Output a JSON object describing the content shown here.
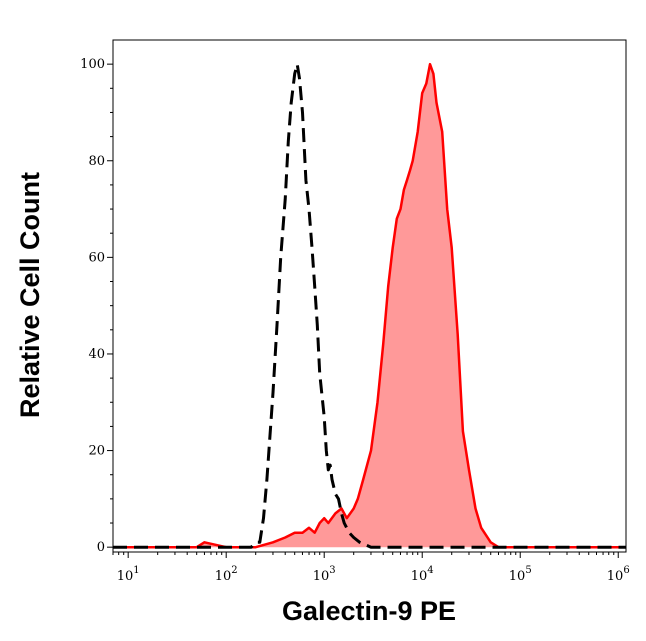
{
  "chart_data": {
    "type": "area",
    "xlabel": "Galectin-9 PE",
    "ylabel": "Relative Cell Count",
    "x_scale": "log",
    "xlim": [
      7,
      1200000
    ],
    "ylim": [
      -1,
      105
    ],
    "x_ticks": [
      {
        "value": 10,
        "base": "10",
        "exp": "1"
      },
      {
        "value": 100,
        "base": "10",
        "exp": "2"
      },
      {
        "value": 1000,
        "base": "10",
        "exp": "3"
      },
      {
        "value": 10000,
        "base": "10",
        "exp": "4"
      },
      {
        "value": 100000,
        "base": "10",
        "exp": "5"
      },
      {
        "value": 1000000,
        "base": "10",
        "exp": "6"
      }
    ],
    "y_ticks": [
      0,
      20,
      40,
      60,
      80,
      100
    ],
    "grid": false,
    "series": [
      {
        "style": "dashed-outline",
        "color": "#000000",
        "x": [
          7,
          100,
          150,
          180,
          200,
          220,
          240,
          260,
          300,
          330,
          360,
          400,
          430,
          460,
          500,
          530,
          560,
          600,
          650,
          700,
          750,
          800,
          850,
          900,
          1000,
          1050,
          1100,
          1150,
          1200,
          1300,
          1400,
          1500,
          1600,
          1800,
          2000,
          2300,
          3000,
          5000,
          10000,
          1200000
        ],
        "y": [
          0,
          0,
          0,
          0,
          1,
          1,
          6,
          14,
          32,
          46,
          60,
          72,
          84,
          92,
          98,
          100,
          97,
          90,
          76,
          70,
          62,
          54,
          46,
          36,
          27,
          20,
          16,
          17,
          14,
          11,
          10,
          7,
          5,
          3,
          2,
          1,
          0,
          0,
          0,
          0
        ]
      },
      {
        "style": "filled",
        "color": "#ff0000",
        "fill": "#ff9999",
        "x": [
          7,
          50,
          60,
          100,
          200,
          300,
          400,
          500,
          600,
          700,
          800,
          900,
          1000,
          1100,
          1300,
          1500,
          1700,
          2000,
          2200,
          2500,
          3000,
          3500,
          4000,
          4500,
          5000,
          5500,
          6000,
          6500,
          7000,
          7500,
          8000,
          9000,
          10000,
          11000,
          12000,
          13000,
          14000,
          16000,
          18000,
          20000,
          23000,
          26000,
          30000,
          35000,
          40000,
          50000,
          60000,
          100000,
          1200000
        ],
        "y": [
          0,
          0,
          1,
          0,
          0,
          1,
          2,
          3,
          3,
          4,
          3,
          5,
          6,
          5,
          7,
          8,
          6,
          8,
          10,
          14,
          20,
          30,
          42,
          54,
          62,
          68,
          70,
          74,
          76,
          78,
          80,
          86,
          94,
          96,
          100,
          98,
          92,
          86,
          70,
          62,
          44,
          24,
          16,
          8,
          4,
          1,
          0,
          0,
          0
        ]
      }
    ]
  }
}
